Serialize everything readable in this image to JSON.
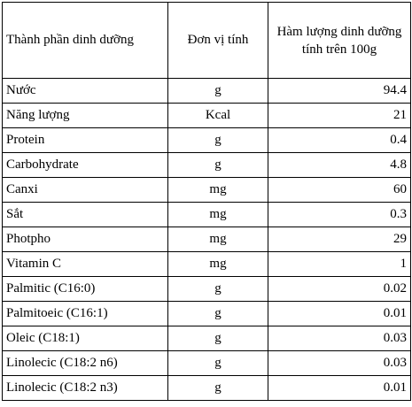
{
  "table": {
    "headers": {
      "name": "Thành phần dinh dưỡng",
      "unit": "Đơn vị tính",
      "amount": "Hàm lượng dinh dưỡng tính trên 100g"
    },
    "rows": [
      {
        "name": "Nước",
        "unit": "g",
        "amount": "94.4"
      },
      {
        "name": "Năng lượng",
        "unit": "Kcal",
        "amount": "21"
      },
      {
        "name": "Protein",
        "unit": "g",
        "amount": "0.4"
      },
      {
        "name": "Carbohydrate",
        "unit": "g",
        "amount": "4.8"
      },
      {
        "name": "Canxi",
        "unit": "mg",
        "amount": "60"
      },
      {
        "name": "Sắt",
        "unit": "mg",
        "amount": "0.3"
      },
      {
        "name": "Photpho",
        "unit": "mg",
        "amount": "29"
      },
      {
        "name": "Vitamin C",
        "unit": "mg",
        "amount": "1"
      },
      {
        "name": "Palmitic (C16:0)",
        "unit": "g",
        "amount": "0.02"
      },
      {
        "name": "Palmitoeic (C16:1)",
        "unit": "g",
        "amount": "0.01"
      },
      {
        "name": "Oleic (C18:1)",
        "unit": "g",
        "amount": "0.03"
      },
      {
        "name": "Linolecic (C18:2 n6)",
        "unit": "g",
        "amount": "0.03"
      },
      {
        "name": "Linolecic (C18:2 n3)",
        "unit": "g",
        "amount": "0.01"
      }
    ]
  }
}
